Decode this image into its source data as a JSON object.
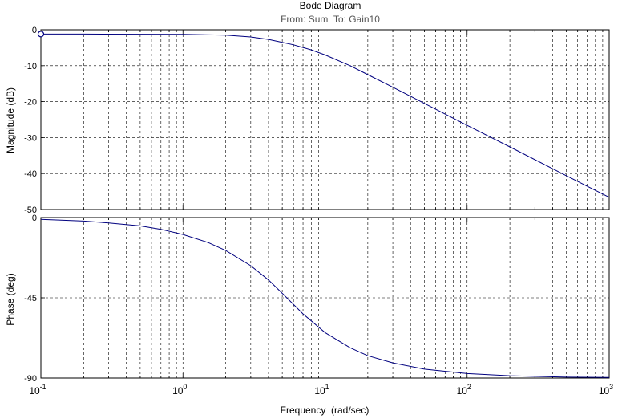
{
  "chart_data": [
    {
      "type": "line",
      "panel": "magnitude",
      "title": "Bode Diagram",
      "subtitle": "From: Sum  To: Gain10",
      "ylabel": "Magnitude (dB)",
      "xlabel": "",
      "xscale": "log",
      "xlim": [
        0.1,
        1000
      ],
      "ylim": [
        -50,
        0
      ],
      "yticks": [
        0,
        -10,
        -20,
        -30,
        -40,
        -50
      ],
      "ytick_labels": [
        "0",
        "-10",
        "-20",
        "-30",
        "-40",
        "-50"
      ],
      "grid": true,
      "line_color": "#00007f",
      "marker_point": {
        "x": 0.1,
        "y": -1.2
      },
      "x": [
        0.1,
        0.2,
        0.5,
        1,
        2,
        3,
        4,
        5,
        6,
        8,
        10,
        15,
        20,
        30,
        50,
        100,
        200,
        500,
        1000
      ],
      "y": [
        -1.2,
        -1.2,
        -1.25,
        -1.3,
        -1.5,
        -2.0,
        -2.7,
        -3.5,
        -4.2,
        -5.6,
        -7.0,
        -10.0,
        -12.5,
        -16.0,
        -20.5,
        -26.6,
        -32.6,
        -40.6,
        -46.6
      ]
    },
    {
      "type": "line",
      "panel": "phase",
      "ylabel": "Phase (deg)",
      "xlabel": "Frequency  (rad/sec)",
      "xscale": "log",
      "xlim": [
        0.1,
        1000
      ],
      "ylim": [
        -90,
        0
      ],
      "yticks": [
        0,
        -45,
        -90
      ],
      "ytick_labels": [
        "0",
        "-45",
        "-90"
      ],
      "xticks": [
        0.1,
        1,
        10,
        100,
        1000
      ],
      "xtick_labels": [
        {
          "base": "10",
          "exp": "-1"
        },
        {
          "base": "10",
          "exp": "0"
        },
        {
          "base": "10",
          "exp": "1"
        },
        {
          "base": "10",
          "exp": "2"
        },
        {
          "base": "10",
          "exp": "3"
        }
      ],
      "grid": true,
      "line_color": "#00007f",
      "x": [
        0.1,
        0.2,
        0.3,
        0.5,
        0.7,
        1,
        1.5,
        2,
        3,
        4,
        5,
        7,
        10,
        15,
        20,
        30,
        50,
        100,
        200,
        500,
        1000
      ],
      "y": [
        -1.0,
        -2.0,
        -3.0,
        -4.7,
        -6.6,
        -9.5,
        -14.0,
        -18.5,
        -27.0,
        -35.0,
        -42.5,
        -54.0,
        -64.5,
        -73.0,
        -77.5,
        -81.5,
        -85.0,
        -87.5,
        -88.7,
        -89.5,
        -89.7
      ]
    }
  ]
}
